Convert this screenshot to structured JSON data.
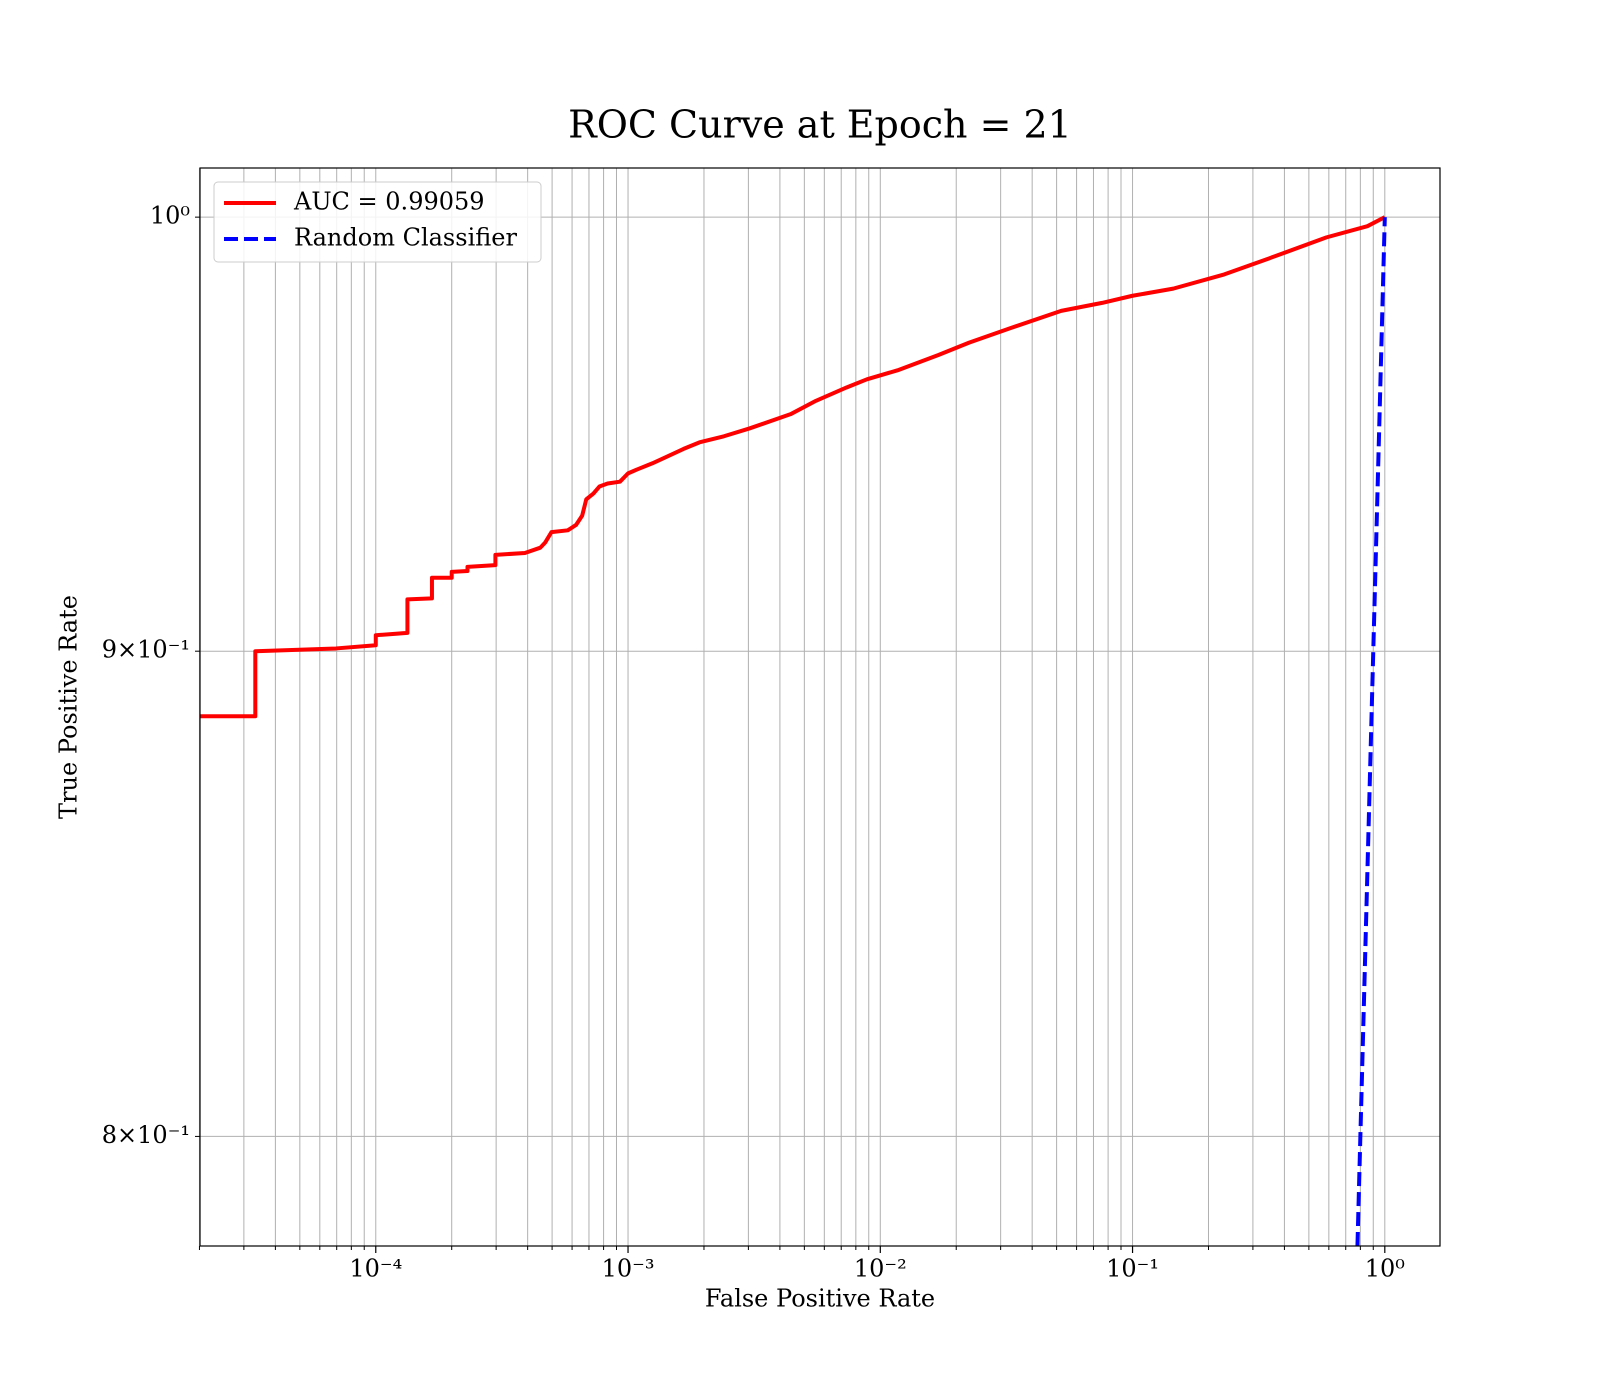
{
  "chart_data": {
    "type": "line",
    "title": "ROC Curve at Epoch = 21",
    "xlabel": "False Positive Rate",
    "ylabel": "True Positive Rate",
    "xscale": "log",
    "yscale": "log",
    "grid": true,
    "legend": "upper left",
    "xlim": [
      2.01e-05,
      1.655
    ],
    "ylim": [
      0.779,
      1.012
    ],
    "xticks": [
      {
        "value": 0.0001,
        "label": "10⁻⁴"
      },
      {
        "value": 0.001,
        "label": "10⁻³"
      },
      {
        "value": 0.01,
        "label": "10⁻²"
      },
      {
        "value": 0.1,
        "label": "10⁻¹"
      },
      {
        "value": 1,
        "label": "10⁰"
      }
    ],
    "xminorticks": [
      2e-05,
      3e-05,
      4e-05,
      5e-05,
      6e-05,
      7e-05,
      8e-05,
      9e-05,
      0.0002,
      0.0003,
      0.0004,
      0.0005,
      0.0006,
      0.0007,
      0.0008,
      0.0009,
      0.002,
      0.003,
      0.004,
      0.005,
      0.006,
      0.007,
      0.008,
      0.009,
      0.02,
      0.03,
      0.04,
      0.05,
      0.06,
      0.07,
      0.08,
      0.09,
      0.2,
      0.3,
      0.4,
      0.5,
      0.6,
      0.7,
      0.8,
      0.9
    ],
    "yticks": [
      {
        "value": 1,
        "label": "10⁰"
      },
      {
        "value": 0.9,
        "label": "9×10⁻¹"
      },
      {
        "value": 0.8,
        "label": "8×10⁻¹"
      }
    ],
    "series": [
      {
        "name": "AUC = 0.99059",
        "color": "#ff0000",
        "linestyle": "solid",
        "x": [
          2.01e-05,
          3.33e-05,
          3.33e-05,
          6.95e-05,
          0.0001,
          0.0001,
          0.0001335,
          0.0001335,
          0.000167,
          0.000167,
          0.0002,
          0.0002,
          0.000231,
          0.000231,
          0.000298,
          0.000298,
          0.00039,
          0.000449,
          0.00047,
          0.000497,
          0.000577,
          0.000622,
          0.000658,
          0.000683,
          0.000729,
          0.00077,
          0.00083,
          0.000929,
          0.001,
          0.001087,
          0.00125,
          0.00145,
          0.00166,
          0.00192,
          0.0024,
          0.00303,
          0.00441,
          0.00556,
          0.00735,
          0.00885,
          0.0117,
          0.017,
          0.0225,
          0.0327,
          0.0521,
          0.0757,
          0.1,
          0.145,
          0.231,
          0.369,
          0.587,
          0.853,
          1
        ],
        "values": [
          0.8859,
          0.8859,
          0.9,
          0.9006,
          0.9013,
          0.9035,
          0.904,
          0.9114,
          0.9116,
          0.9162,
          0.9162,
          0.9175,
          0.9177,
          0.9186,
          0.919,
          0.9213,
          0.9217,
          0.9229,
          0.9241,
          0.9264,
          0.9268,
          0.928,
          0.9301,
          0.9338,
          0.9351,
          0.9367,
          0.9374,
          0.9378,
          0.9397,
          0.9406,
          0.942,
          0.9437,
          0.9453,
          0.9468,
          0.9482,
          0.95,
          0.9533,
          0.9564,
          0.9595,
          0.9614,
          0.9635,
          0.9671,
          0.97,
          0.9734,
          0.9775,
          0.9794,
          0.9811,
          0.9828,
          0.9862,
          0.9906,
          0.9951,
          0.9978,
          1
        ]
      },
      {
        "name": "Random Classifier",
        "color": "#0000ff",
        "linestyle": "dashed",
        "x": [
          0.779,
          1
        ],
        "values": [
          0.779,
          1
        ]
      }
    ]
  }
}
